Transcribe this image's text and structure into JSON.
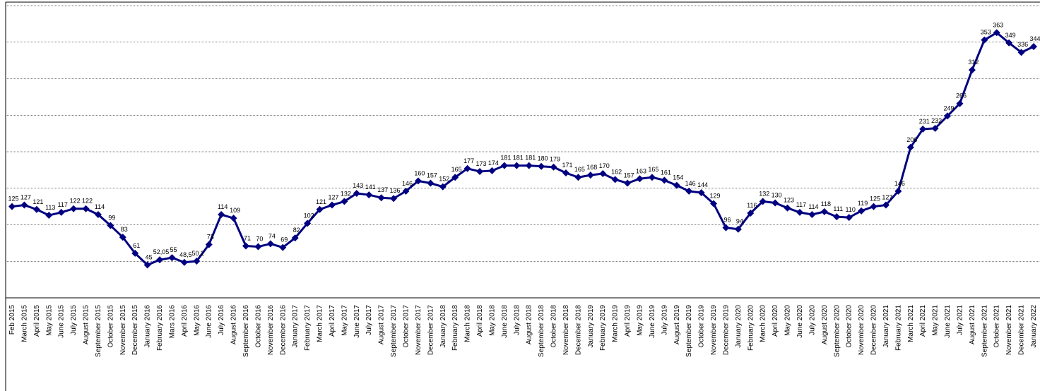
{
  "chart_data": {
    "type": "line",
    "title": "",
    "xlabel": "",
    "ylabel": "",
    "ylim": [
      0,
      400
    ],
    "grid": true,
    "legend": "none",
    "marker": "diamond",
    "line_color": "#000080",
    "categories": [
      "Feb 2015",
      "March 2015",
      "April 2015",
      "May 2015",
      "June 2015",
      "July 2015",
      "August 2015",
      "September 2015",
      "October 2015",
      "November 2015",
      "December 2015",
      "January 2016",
      "February 2016",
      "Mars 2016",
      "April 2016",
      "May 2016",
      "June 2016",
      "July 2016",
      "August 2016",
      "September 2016",
      "October 2016",
      "November 2016",
      "December 2016",
      "January 2017",
      "February 2017",
      "March 2017",
      "April 2017",
      "May 2017",
      "June 2017",
      "July 2017",
      "August 2017",
      "September 2017",
      "October 2017",
      "November 2017",
      "December 2017",
      "January 2018",
      "February 2018",
      "March 2018",
      "April 2018",
      "May 2018",
      "June 2018",
      "July 2018",
      "August 2018",
      "September 2018",
      "October 2018",
      "November 2018",
      "December 2018",
      "January 2019",
      "February 2019",
      "March 2019",
      "April 2019",
      "May 2019",
      "June 2019",
      "July 2019",
      "August 2019",
      "September 2019",
      "October 2019",
      "November 2019",
      "December 2019",
      "January 2020",
      "February 2020",
      "March 2020",
      "April 2020",
      "May 2020",
      "June 2020",
      "July 2020",
      "August 2020",
      "September 2020",
      "October 2020",
      "November 2020",
      "December 2020",
      "January 2021",
      "February 2021",
      "March 2021",
      "April 2021",
      "May 2021",
      "June 2021",
      "July 2021",
      "August 2021",
      "September 2021",
      "October 2021",
      "November 2021",
      "December 2021",
      "January 2022"
    ],
    "series": [
      {
        "values": [
          125,
          127,
          121,
          113,
          117,
          122,
          122,
          114,
          99,
          83,
          61,
          45,
          52.05,
          55,
          48.5,
          50.2,
          73,
          114,
          109,
          71,
          70,
          74,
          69,
          82,
          102,
          121,
          127,
          132,
          143,
          141,
          137,
          136,
          146,
          160,
          157,
          152,
          165,
          177,
          173,
          174,
          181,
          181,
          181,
          180,
          179,
          171,
          165,
          168,
          170,
          162,
          157,
          163,
          165,
          161,
          154,
          146,
          144,
          129,
          96,
          94,
          116,
          132,
          130,
          123,
          117,
          114,
          118,
          111,
          110,
          119,
          125,
          127,
          146,
          206,
          231,
          232,
          249,
          266,
          312,
          353,
          363,
          349,
          336,
          344
        ],
        "labels": [
          "125",
          "127",
          "121",
          "113",
          "117",
          "122",
          "122",
          "114",
          "99",
          "83",
          "61",
          "45",
          "52,05",
          "55",
          "48,5",
          "50,2",
          "73",
          "114",
          "109",
          "71",
          "70",
          "74",
          "69",
          "82",
          "102",
          "121",
          "127",
          "132",
          "143",
          "141",
          "137",
          "136",
          "146",
          "160",
          "157",
          "152",
          "165",
          "177",
          "173",
          "174",
          "181",
          "181",
          "181",
          "180",
          "179",
          "171",
          "165",
          "168",
          "170",
          "162",
          "157",
          "163",
          "165",
          "161",
          "154",
          "146",
          "144",
          "129",
          "96",
          "94",
          "116",
          "132",
          "130",
          "123",
          "117",
          "114",
          "118",
          "111",
          "110",
          "119",
          "125",
          "127",
          "146",
          "206",
          "231",
          "232",
          "249",
          "266",
          "312",
          "353",
          "363",
          "349",
          "336",
          "344"
        ]
      }
    ]
  }
}
